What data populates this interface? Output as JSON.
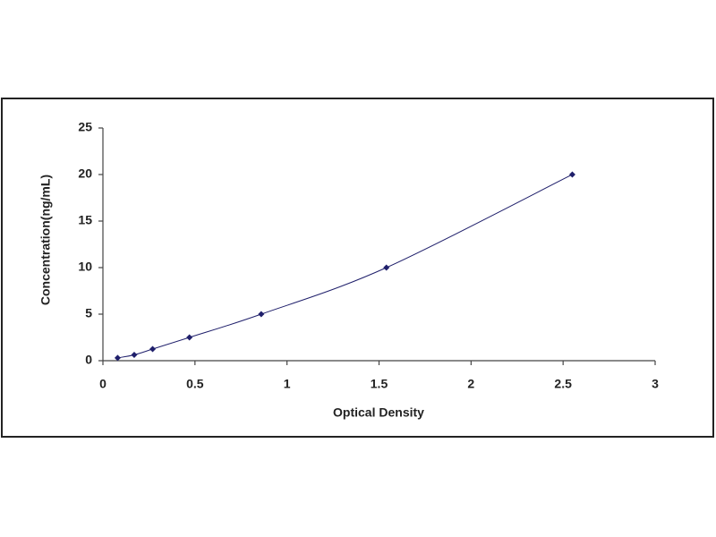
{
  "chart_data": {
    "type": "line",
    "x_label": "Optical Density",
    "y_label": "Concentration(ng/mL)",
    "series": [
      {
        "color": "#1f1f6b",
        "x": [
          0.08,
          0.17,
          0.27,
          0.47,
          0.86,
          1.54,
          2.55
        ],
        "values": [
          0.3,
          0.625,
          1.25,
          2.5,
          5,
          10,
          20
        ]
      }
    ],
    "xlim": [
      0,
      3
    ],
    "xticks": [
      0,
      0.5,
      1,
      1.5,
      2,
      2.5,
      3
    ],
    "ylim": [
      0,
      25
    ],
    "yticks": [
      0,
      5,
      10,
      15,
      20,
      25
    ],
    "markers": true,
    "grid": false
  }
}
